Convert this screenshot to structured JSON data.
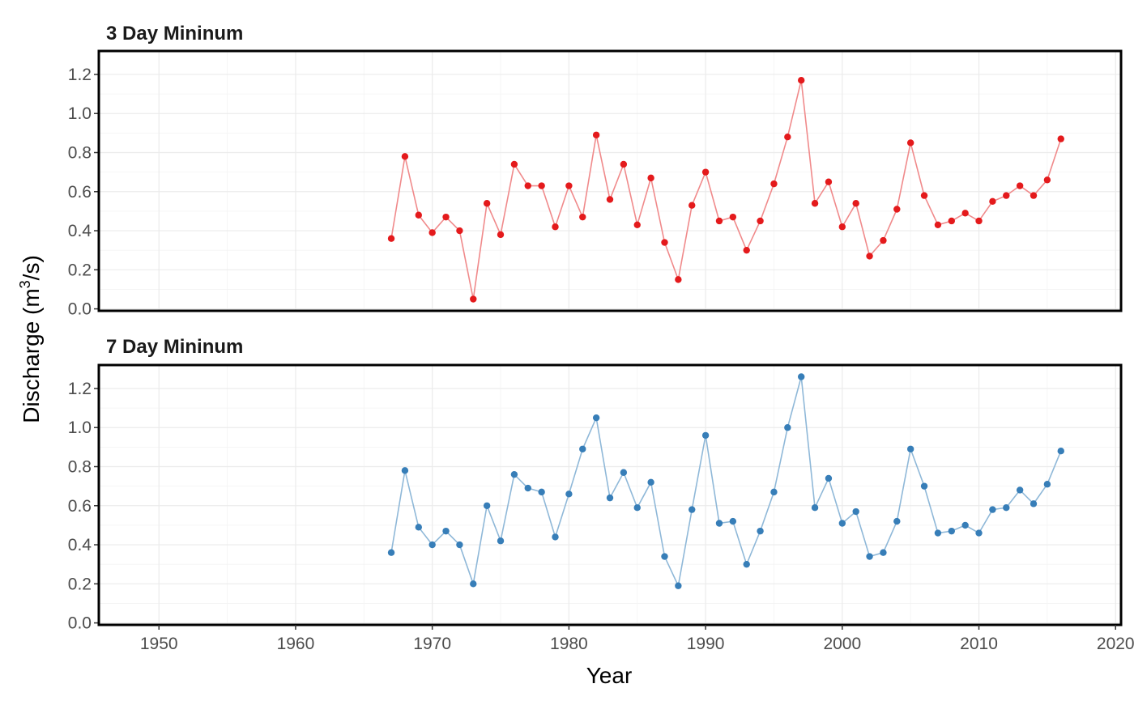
{
  "chart_data": {
    "type": "line",
    "ylabel": "Discharge (m³/s)",
    "xlabel": "Year",
    "xlim": [
      1945.6,
      2020.4
    ],
    "ylim": [
      -0.01,
      1.32
    ],
    "x_ticks": [
      1950,
      1960,
      1970,
      1980,
      1990,
      2000,
      2010,
      2020
    ],
    "y_ticks": [
      0.0,
      0.2,
      0.4,
      0.6,
      0.8,
      1.0,
      1.2
    ],
    "x_tick_labels": [
      "1950",
      "1960",
      "1970",
      "1980",
      "1990",
      "2000",
      "2010",
      "2020"
    ],
    "y_tick_labels": [
      "0.0",
      "0.2",
      "0.4",
      "0.6",
      "0.8",
      "1.0",
      "1.2"
    ],
    "grid": true,
    "x": [
      1967,
      1968,
      1969,
      1970,
      1971,
      1972,
      1973,
      1974,
      1975,
      1976,
      1977,
      1978,
      1979,
      1980,
      1981,
      1982,
      1983,
      1984,
      1985,
      1986,
      1987,
      1988,
      1989,
      1990,
      1991,
      1992,
      1993,
      1994,
      1995,
      1996,
      1997,
      1998,
      1999,
      2000,
      2001,
      2002,
      2003,
      2004,
      2005,
      2006,
      2007,
      2008,
      2009,
      2010,
      2011,
      2012,
      2013,
      2014,
      2015,
      2016
    ],
    "panels": [
      {
        "title": "3 Day Mininum",
        "point_color": "#e41a1c",
        "line_color": "#f08a8b",
        "values": [
          0.36,
          0.78,
          0.48,
          0.39,
          0.47,
          0.4,
          0.05,
          0.54,
          0.38,
          0.74,
          0.63,
          0.63,
          0.42,
          0.63,
          0.47,
          0.89,
          0.56,
          0.74,
          0.43,
          0.67,
          0.34,
          0.15,
          0.53,
          0.7,
          0.45,
          0.47,
          0.3,
          0.45,
          0.64,
          0.88,
          1.17,
          0.54,
          0.65,
          0.42,
          0.54,
          0.27,
          0.35,
          0.51,
          0.85,
          0.58,
          0.43,
          0.45,
          0.49,
          0.45,
          0.55,
          0.58,
          0.63,
          0.58,
          0.66,
          0.87
        ]
      },
      {
        "title": "7 Day Mininum",
        "point_color": "#377eb8",
        "line_color": "#8fb8d8",
        "values": [
          0.36,
          0.78,
          0.49,
          0.4,
          0.47,
          0.4,
          0.2,
          0.6,
          0.42,
          0.76,
          0.69,
          0.67,
          0.44,
          0.66,
          0.89,
          1.05,
          0.64,
          0.77,
          0.59,
          0.72,
          0.34,
          0.19,
          0.58,
          0.96,
          0.51,
          0.52,
          0.3,
          0.47,
          0.67,
          1.0,
          1.26,
          0.59,
          0.74,
          0.51,
          0.57,
          0.34,
          0.36,
          0.52,
          0.89,
          0.7,
          0.46,
          0.47,
          0.5,
          0.46,
          0.58,
          0.59,
          0.68,
          0.61,
          0.71,
          0.88
        ]
      }
    ]
  }
}
